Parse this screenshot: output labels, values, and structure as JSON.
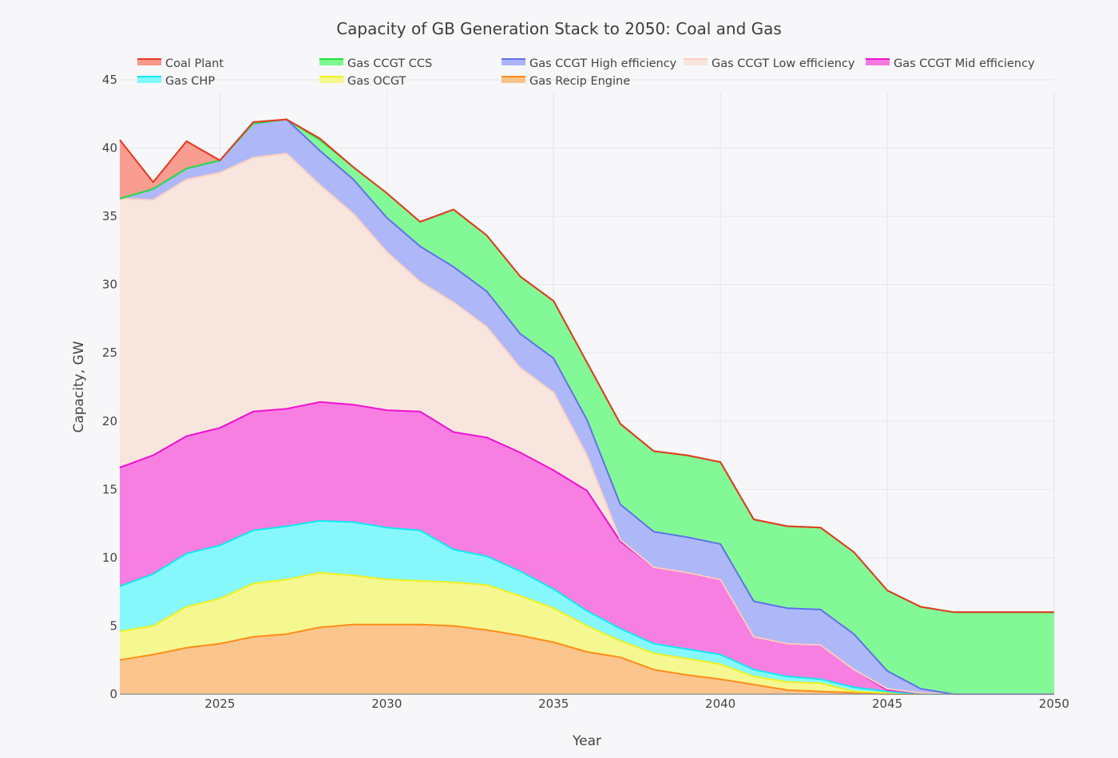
{
  "chart_data": {
    "type": "area",
    "stacked": true,
    "title": "Capacity of GB Generation Stack to 2050: Coal and Gas",
    "xlabel": "Year",
    "ylabel": "Capacity, GW",
    "xlim": [
      2022,
      2050
    ],
    "ylim": [
      0,
      45
    ],
    "x_ticks": [
      2025,
      2030,
      2035,
      2040,
      2045,
      2050
    ],
    "y_ticks": [
      0,
      5,
      10,
      15,
      20,
      25,
      30,
      35,
      40,
      45
    ],
    "grid": true,
    "legend_position": "top",
    "x": [
      2022,
      2023,
      2024,
      2025,
      2026,
      2027,
      2028,
      2029,
      2030,
      2031,
      2032,
      2033,
      2034,
      2035,
      2036,
      2037,
      2038,
      2039,
      2040,
      2041,
      2042,
      2043,
      2044,
      2045,
      2046,
      2047,
      2048,
      2049,
      2050
    ],
    "series": [
      {
        "name": "Gas Recip Engine",
        "line": "#ff8c1a",
        "fill": "#fbc287",
        "values": [
          2.5,
          2.9,
          3.4,
          3.7,
          4.2,
          4.4,
          4.9,
          5.1,
          5.1,
          5.1,
          5.0,
          4.7,
          4.3,
          3.8,
          3.1,
          2.7,
          1.8,
          1.4,
          1.1,
          0.7,
          0.3,
          0.2,
          0.1,
          0,
          0,
          0,
          0,
          0,
          0
        ]
      },
      {
        "name": "Gas OCGT",
        "line": "#f0f020",
        "fill": "#f4f78a",
        "values": [
          2.1,
          2.1,
          3.0,
          3.3,
          3.9,
          4.0,
          4.0,
          3.6,
          3.3,
          3.2,
          3.2,
          3.3,
          2.9,
          2.5,
          1.9,
          1.2,
          1.2,
          1.2,
          1.1,
          0.6,
          0.6,
          0.6,
          0.1,
          0.1,
          0,
          0,
          0,
          0,
          0
        ]
      },
      {
        "name": "Gas CHP",
        "line": "#10e8f0",
        "fill": "#80f8fc",
        "values": [
          3.3,
          3.8,
          3.9,
          3.9,
          3.9,
          3.9,
          3.8,
          3.9,
          3.8,
          3.7,
          2.4,
          2.1,
          1.8,
          1.4,
          1.1,
          0.9,
          0.7,
          0.7,
          0.7,
          0.5,
          0.4,
          0.3,
          0.3,
          0.1,
          0,
          0,
          0,
          0,
          0
        ]
      },
      {
        "name": "Gas CCGT Mid efficiency",
        "line": "#f010d0",
        "fill": "#f878e0",
        "values": [
          8.7,
          8.7,
          8.6,
          8.6,
          8.7,
          8.6,
          8.7,
          8.6,
          8.6,
          8.7,
          8.6,
          8.7,
          8.7,
          8.7,
          8.8,
          6.4,
          5.6,
          5.6,
          5.5,
          2.4,
          2.4,
          2.5,
          1.3,
          0.1,
          0.1,
          0,
          0,
          0,
          0
        ]
      },
      {
        "name": "Gas CCGT Low efficiency",
        "line": "#fbd0c0",
        "fill": "#f8e4dc",
        "values": [
          19.7,
          18.7,
          18.8,
          18.7,
          18.6,
          18.7,
          15.9,
          14.0,
          11.6,
          9.5,
          9.5,
          8.1,
          6.2,
          5.7,
          2.6,
          0.1,
          0,
          0,
          0,
          0,
          0,
          0,
          0,
          0.1,
          0,
          0,
          0,
          0,
          0
        ]
      },
      {
        "name": "Gas CCGT High efficiency",
        "line": "#6070f0",
        "fill": "#aab4f8",
        "values": [
          0,
          0.8,
          0.8,
          0.9,
          2.5,
          2.5,
          2.5,
          2.5,
          2.5,
          2.6,
          2.6,
          2.6,
          2.5,
          2.5,
          2.6,
          2.6,
          2.6,
          2.6,
          2.6,
          2.6,
          2.6,
          2.6,
          2.6,
          1.3,
          0.3,
          0,
          0,
          0,
          0
        ]
      },
      {
        "name": "Gas CCGT CCS",
        "line": "#20e040",
        "fill": "#7cf890",
        "values": [
          0,
          0,
          0,
          0,
          0,
          0,
          0.8,
          0.9,
          1.8,
          1.8,
          4.2,
          4.1,
          4.2,
          4.2,
          4.2,
          5.9,
          5.9,
          6.0,
          6.0,
          6.0,
          6.0,
          6.0,
          6.0,
          5.9,
          6.0,
          6.0,
          6.0,
          6.0,
          6.0
        ]
      },
      {
        "name": "Coal Plant",
        "line": "#e83820",
        "fill": "#f8988a",
        "values": [
          4.3,
          0.5,
          2.0,
          0,
          0.1,
          0,
          0.1,
          0,
          0,
          0,
          0,
          0,
          0,
          0,
          0,
          0,
          0,
          0,
          0,
          0,
          0,
          0,
          0,
          0,
          0,
          0,
          0,
          0,
          0
        ]
      }
    ],
    "legend_order": [
      "Coal Plant",
      "Gas CCGT CCS",
      "Gas CCGT High efficiency",
      "Gas CCGT Low efficiency",
      "Gas CCGT Mid efficiency",
      "Gas CHP",
      "Gas OCGT",
      "Gas Recip Engine"
    ]
  }
}
